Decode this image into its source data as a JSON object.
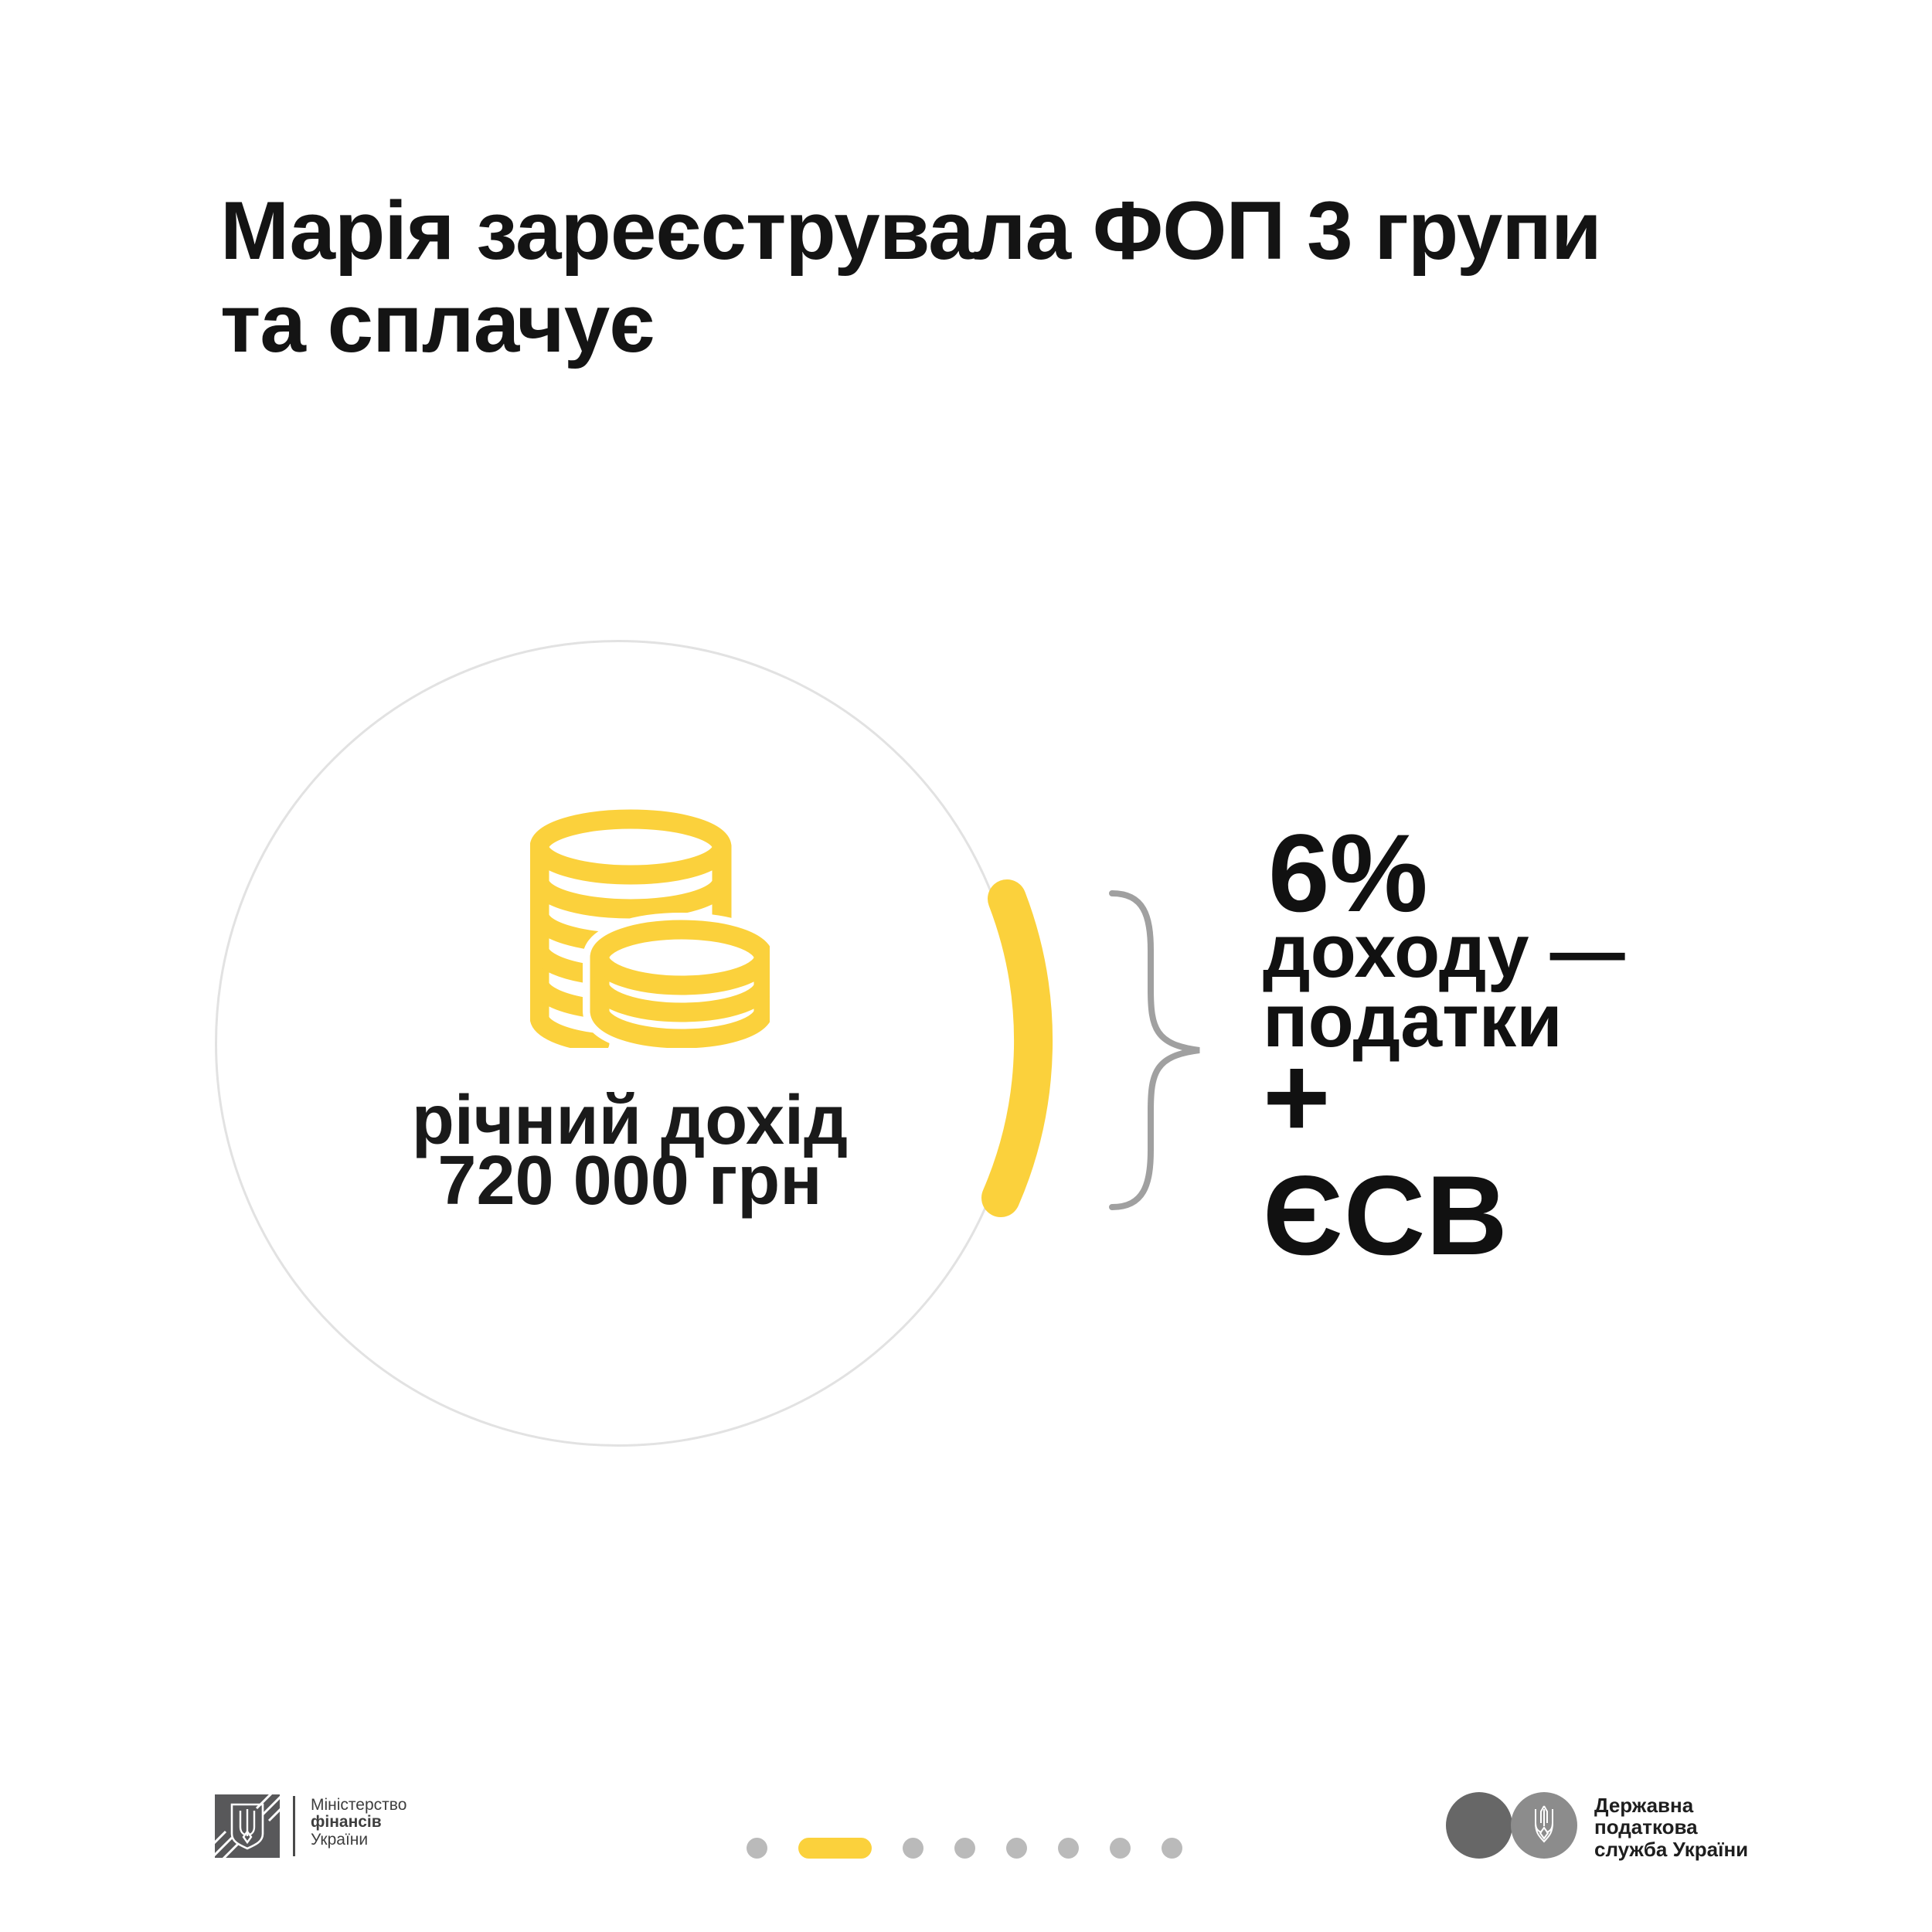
{
  "title": {
    "line1": "Марія зареєструвала ФОП 3 групи",
    "line2": "та сплачує"
  },
  "income_circle": {
    "icon": "coins-icon",
    "label_line1": "річний дохід",
    "label_line2": "720 000 грн"
  },
  "result": {
    "rate": "6%",
    "line1": "доходу —",
    "line2": "податки",
    "plus": "+",
    "esv": "ЄСВ"
  },
  "footer": {
    "minfin": {
      "emblem": "trident-shield-icon",
      "line1": "Міністерство",
      "line2": "фінансів",
      "line3": "України"
    },
    "pagination": {
      "total": 8,
      "active_index": 1
    },
    "tax_service": {
      "emblem": "trident-icon",
      "line1": "Державна",
      "line2": "податкова",
      "line3": "служба України"
    }
  },
  "colors": {
    "accent_yellow": "#FBD13C",
    "circle_outline": "#E2E2E2",
    "brace_gray": "#A0A0A0",
    "dot_gray": "#BABABA",
    "text_dark": "#161616",
    "minfin_square_gray": "#58585A",
    "tax_dark_circle": "#676767",
    "tax_light_circle": "#8C8C8C"
  }
}
